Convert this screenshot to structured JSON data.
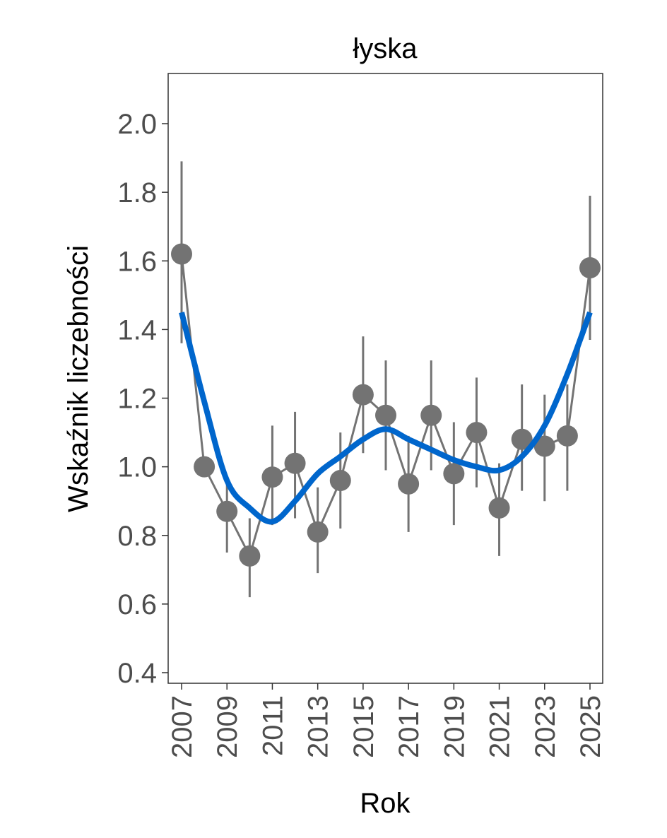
{
  "chart_data": {
    "type": "line",
    "title": "łyska",
    "xlabel": "Rok",
    "ylabel": "Wskaźnik liczebności",
    "ylim": [
      0.4,
      2.13
    ],
    "xlim": [
      2006.4,
      2025.6
    ],
    "yticks": [
      0.4,
      0.6,
      0.8,
      1.0,
      1.2,
      1.4,
      1.6,
      1.8,
      2.0
    ],
    "ytick_labels": [
      "0.4",
      "0.6",
      "0.8",
      "1.0",
      "1.2",
      "1.4",
      "1.6",
      "1.8",
      "2.0"
    ],
    "xticks": [
      2007,
      2009,
      2011,
      2013,
      2015,
      2017,
      2019,
      2021,
      2023,
      2025
    ],
    "xtick_labels": [
      "2007",
      "2009",
      "2011",
      "2013",
      "2015",
      "2017",
      "2019",
      "2021",
      "2023",
      "2025"
    ],
    "grid": false,
    "series": [
      {
        "name": "index",
        "color": "#737373",
        "x": [
          2007,
          2008,
          2009,
          2010,
          2011,
          2012,
          2013,
          2014,
          2015,
          2016,
          2017,
          2018,
          2019,
          2020,
          2021,
          2022,
          2023,
          2024,
          2025
        ],
        "y": [
          1.62,
          1.0,
          0.87,
          0.74,
          0.97,
          1.01,
          0.81,
          0.96,
          1.21,
          1.15,
          0.95,
          1.15,
          0.98,
          1.1,
          0.88,
          1.08,
          1.06,
          1.09,
          1.58
        ],
        "lower": [
          1.36,
          1.0,
          0.75,
          0.62,
          0.83,
          0.85,
          0.69,
          0.82,
          1.04,
          0.99,
          0.81,
          0.99,
          0.83,
          0.94,
          0.74,
          0.93,
          0.9,
          0.93,
          1.37
        ],
        "upper": [
          1.89,
          1.0,
          0.96,
          0.85,
          1.12,
          1.16,
          0.94,
          1.1,
          1.38,
          1.31,
          1.09,
          1.31,
          1.13,
          1.26,
          1.01,
          1.24,
          1.21,
          1.24,
          1.79
        ]
      },
      {
        "name": "trend",
        "color": "#0066CC",
        "x": [
          2007,
          2008,
          2009,
          2010,
          2011,
          2012,
          2013,
          2014,
          2015,
          2016,
          2017,
          2018,
          2019,
          2020,
          2021,
          2022,
          2023,
          2024,
          2025
        ],
        "y": [
          1.45,
          1.19,
          0.96,
          0.88,
          0.84,
          0.9,
          0.98,
          1.03,
          1.08,
          1.11,
          1.08,
          1.05,
          1.02,
          1.0,
          0.99,
          1.03,
          1.12,
          1.27,
          1.45
        ]
      }
    ]
  }
}
